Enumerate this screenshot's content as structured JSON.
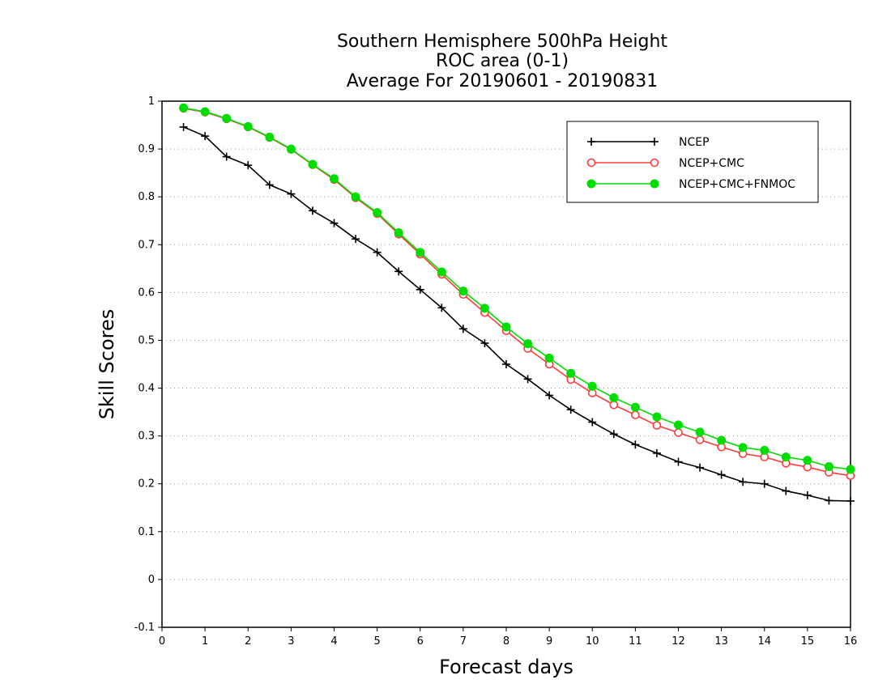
{
  "chart_data": {
    "type": "line",
    "title": [
      "Southern Hemisphere 500hPa Height",
      "ROC area (0-1)",
      "Average For 20190601 - 20190831"
    ],
    "xlabel": "Forecast days",
    "ylabel": "Skill Scores",
    "xlim": [
      0,
      16
    ],
    "ylim": [
      -0.1,
      1
    ],
    "xticks": [
      0,
      1,
      2,
      3,
      4,
      5,
      6,
      7,
      8,
      9,
      10,
      11,
      12,
      13,
      14,
      15,
      16
    ],
    "yticks": [
      -0.1,
      0,
      0.1,
      0.2,
      0.3,
      0.4,
      0.5,
      0.6,
      0.7,
      0.8,
      0.9,
      1
    ],
    "ytick_labels": [
      "-0.1",
      "0",
      "0.1",
      "0.2",
      "0.3",
      "0.4",
      "0.5",
      "0.6",
      "0.7",
      "0.8",
      "0.9",
      "1"
    ],
    "grid": "horizontal dotted",
    "legend_position": "top-right",
    "x": [
      0.5,
      1,
      1.5,
      2,
      2.5,
      3,
      3.5,
      4,
      4.5,
      5,
      5.5,
      6,
      6.5,
      7,
      7.5,
      8,
      8.5,
      9,
      9.5,
      10,
      10.5,
      11,
      11.5,
      12,
      12.5,
      13,
      13.5,
      14,
      14.5,
      15,
      15.5,
      16
    ],
    "series": [
      {
        "name": "NCEP",
        "color": "#000000",
        "marker": "plus",
        "values": [
          0.946,
          0.927,
          0.884,
          0.866,
          0.825,
          0.806,
          0.771,
          0.745,
          0.712,
          0.684,
          0.644,
          0.606,
          0.568,
          0.524,
          0.494,
          0.45,
          0.419,
          0.385,
          0.355,
          0.329,
          0.304,
          0.282,
          0.264,
          0.246,
          0.234,
          0.219,
          0.204,
          0.2,
          0.185,
          0.176,
          0.165,
          0.164
        ]
      },
      {
        "name": "NCEP+CMC",
        "color": "#ff3b3b",
        "marker": "open-circle",
        "values": [
          0.985,
          0.977,
          0.963,
          0.946,
          0.924,
          0.899,
          0.867,
          0.836,
          0.798,
          0.765,
          0.722,
          0.68,
          0.638,
          0.596,
          0.558,
          0.52,
          0.483,
          0.45,
          0.418,
          0.39,
          0.365,
          0.344,
          0.322,
          0.307,
          0.292,
          0.277,
          0.263,
          0.256,
          0.243,
          0.235,
          0.224,
          0.217
        ]
      },
      {
        "name": "NCEP+CMC+FNMOC",
        "color": "#00dd00",
        "marker": "filled-circle",
        "values": [
          0.986,
          0.978,
          0.964,
          0.947,
          0.925,
          0.9,
          0.868,
          0.838,
          0.8,
          0.767,
          0.725,
          0.684,
          0.643,
          0.603,
          0.567,
          0.528,
          0.493,
          0.463,
          0.431,
          0.404,
          0.38,
          0.36,
          0.34,
          0.323,
          0.308,
          0.291,
          0.276,
          0.27,
          0.256,
          0.249,
          0.236,
          0.23
        ]
      }
    ]
  }
}
